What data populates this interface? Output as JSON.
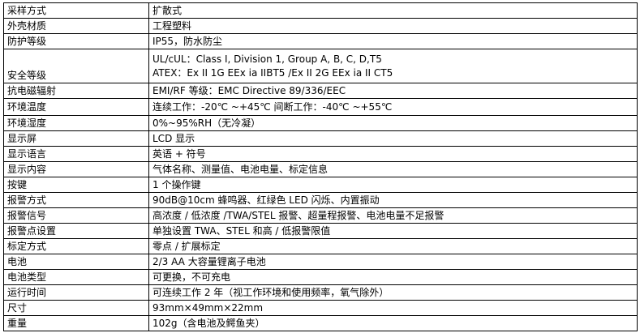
{
  "rows": [
    {
      "label": "采样方式",
      "value": "扩散式"
    },
    {
      "label": "外壳材质",
      "value": "工程塑料"
    },
    {
      "label": "防护等级",
      "value": "IP55，防水防尘"
    },
    {
      "label": "安全等级",
      "lines": [
        "UL/cUL：Class I, Division 1, Group A, B, C, D,T5",
        "ATEX：Ex II 1G EEx ia IIBT5 /Ex II 2G EEx ia II CT5"
      ]
    },
    {
      "label": "抗电磁辐射",
      "value": "EMI/RF  等级：EMC Directive 89/336/EEC"
    },
    {
      "label": "环境温度",
      "value": "连续工作：-20℃  ~+45℃  间断工作：-40℃  ~+55℃"
    },
    {
      "label": "环境湿度",
      "value": "0%~95%RH（无冷凝）"
    },
    {
      "label": "显示屏",
      "value": "LCD  显示"
    },
    {
      "label": "显示语言",
      "value": "英语  +  符号"
    },
    {
      "label": "显示内容",
      "value": "气体名称、测量值、电池电量、标定信息"
    },
    {
      "label": "按键",
      "value": "1  个操作键"
    },
    {
      "label": "报警方式",
      "value": "90dB@10cm  蜂鸣器、红绿色  LED  闪烁、内置振动"
    },
    {
      "label": "报警信号",
      "value": "高浓度  /  低浓度  /TWA/STEL  报警、超量程报警、电池电量不足报警"
    },
    {
      "label": "报警点设置",
      "value": "单独设置  TWA、STEL  和高  /  低报警限值"
    },
    {
      "label": "标定方式",
      "value": "零点  /  扩展标定"
    },
    {
      "label": "电池",
      "value": "2/3 AA  大容量锂离子电池"
    },
    {
      "label": "电池类型",
      "value": "可更换，不可充电"
    },
    {
      "label": "运行时间",
      "value": "可连续工作  2  年（视工作环境和使用频率，氧气除外）"
    },
    {
      "label": "尺寸",
      "value": "93mm×49mm×22mm"
    },
    {
      "label": "重量",
      "value": "102g（含电池及鳄鱼夹）"
    }
  ]
}
